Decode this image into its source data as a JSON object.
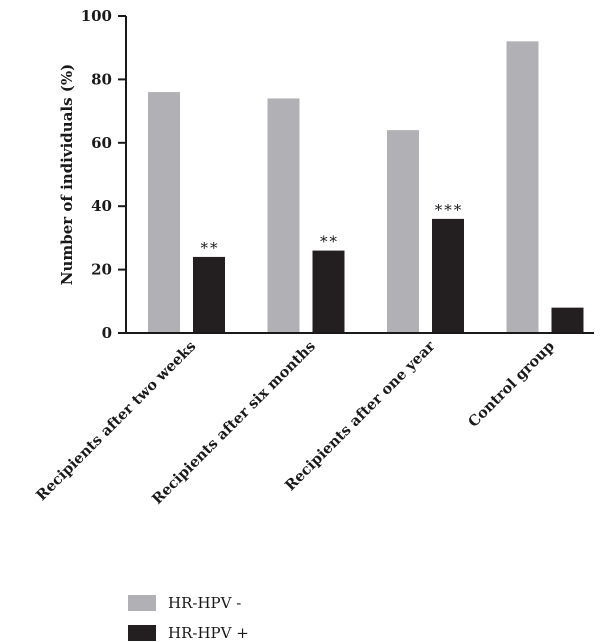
{
  "chart_data": {
    "type": "bar",
    "title": "",
    "xlabel": "",
    "ylabel": "Number of individuals (%)",
    "ylim": [
      0,
      100
    ],
    "yticks": [
      "0",
      "20",
      "40",
      "60",
      "80",
      "100"
    ],
    "categories": [
      "Recipients after two weeks",
      "Recipients after six months",
      "Recipients after one year",
      "Control group"
    ],
    "series": [
      {
        "name": "HR-HPV -",
        "values": [
          76,
          74,
          64,
          92
        ],
        "color": "#b1b1b5"
      },
      {
        "name": "HR-HPV +",
        "values": [
          24,
          26,
          36,
          8
        ],
        "color": "#231f20"
      }
    ],
    "annotations": [
      "**",
      "**",
      "***",
      ""
    ],
    "grid": false,
    "legend": "bottom-left"
  }
}
